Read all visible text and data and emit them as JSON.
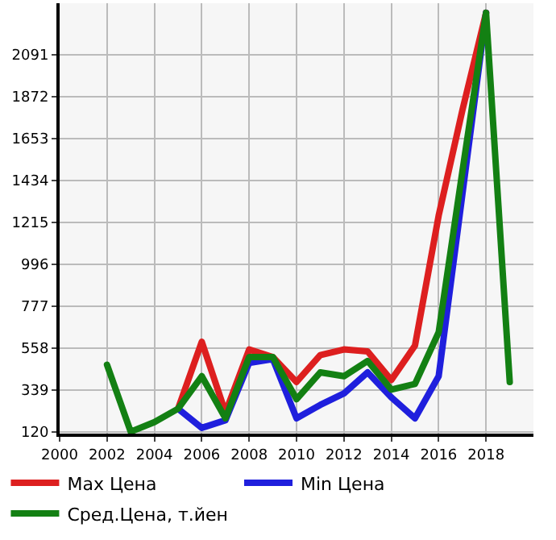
{
  "chart_data": {
    "type": "line",
    "x": [
      2002,
      2003,
      2004,
      2005,
      2006,
      2007,
      2008,
      2009,
      2010,
      2011,
      2012,
      2013,
      2014,
      2015,
      2016,
      2017,
      2018,
      2019
    ],
    "series": [
      {
        "name": "Max Цена",
        "color": "#dd1f1f",
        "values": [
          null,
          null,
          null,
          240,
          590,
          220,
          550,
          510,
          380,
          520,
          550,
          540,
          390,
          570,
          1250,
          1800,
          2310,
          null
        ]
      },
      {
        "name": "Min Цена",
        "color": "#1f1fdd",
        "values": [
          null,
          null,
          null,
          240,
          140,
          180,
          480,
          500,
          190,
          260,
          320,
          430,
          300,
          190,
          410,
          1360,
          2310,
          null
        ]
      },
      {
        "name": "Сред.Цена, т.йен",
        "color": "#138013",
        "values": [
          470,
          120,
          170,
          240,
          410,
          190,
          510,
          510,
          290,
          430,
          410,
          490,
          340,
          370,
          640,
          1480,
          2310,
          380
        ]
      }
    ],
    "xlim": [
      2000,
      2020
    ],
    "xticks": [
      2000,
      2002,
      2004,
      2006,
      2008,
      2010,
      2012,
      2014,
      2016,
      2018
    ],
    "ylim": [
      110,
      2360
    ],
    "yticks": [
      120,
      339,
      558,
      777,
      996,
      1215,
      1434,
      1653,
      1872,
      2091
    ],
    "grid": true,
    "legend": "bottom",
    "marker": "none",
    "line_style": "solid"
  }
}
